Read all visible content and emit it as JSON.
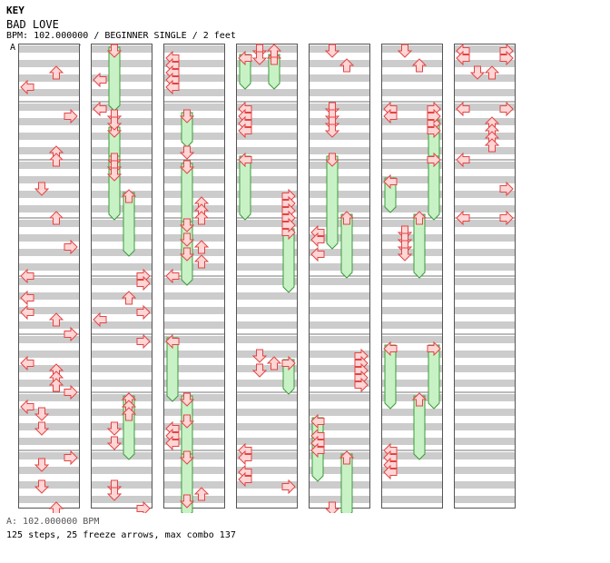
{
  "header": {
    "key_label": "KEY",
    "song_title": "BAD LOVE",
    "info_line": "BPM: 102.000000 / BEGINNER SINGLE / 2 feet",
    "bpm_marker": "A"
  },
  "footer": {
    "bpm_legend": "A: 102.000000 BPM",
    "stats": "125 steps, 25 freeze arrows, max combo 137"
  },
  "colors": {
    "stripe_gray": "#cccccc",
    "column_border": "#555555",
    "arrow_fill": "#ffd5d5",
    "arrow_stroke": "#e14545",
    "freeze_fill": "#c8f2c6",
    "freeze_stroke": "#3d9a3d",
    "bpm_marker_line": "#4a8ed9"
  },
  "chart_data": {
    "type": "step-chart",
    "arrow_directions": [
      "left",
      "down",
      "up",
      "right"
    ],
    "columns": [
      {
        "steps": [
          [
            3,
            "up"
          ],
          [
            5,
            "left"
          ],
          [
            9,
            "right"
          ],
          [
            14,
            "up"
          ],
          [
            15,
            "up"
          ],
          [
            19,
            "down"
          ],
          [
            23,
            "up"
          ],
          [
            27,
            "right"
          ],
          [
            31,
            "left"
          ],
          [
            34,
            "left"
          ],
          [
            36,
            "left"
          ],
          [
            37,
            "up"
          ],
          [
            39,
            "right"
          ],
          [
            43,
            "left"
          ],
          [
            44,
            "up"
          ],
          [
            45,
            "up"
          ],
          [
            46,
            "up"
          ],
          [
            47,
            "right"
          ],
          [
            49,
            "left"
          ],
          [
            50,
            "down"
          ],
          [
            52,
            "down"
          ],
          [
            56,
            "right"
          ],
          [
            57,
            "down"
          ],
          [
            60,
            "down"
          ],
          [
            63,
            "up"
          ]
        ],
        "freezes": []
      },
      {
        "steps": [
          [
            4,
            "left"
          ],
          [
            8,
            "left"
          ],
          [
            9,
            "down"
          ],
          [
            10,
            "down"
          ],
          [
            15,
            "down"
          ],
          [
            16,
            "down"
          ],
          [
            17,
            "down"
          ],
          [
            31,
            "right"
          ],
          [
            32,
            "right"
          ],
          [
            34,
            "up"
          ],
          [
            36,
            "right"
          ],
          [
            37,
            "left"
          ],
          [
            40,
            "right"
          ],
          [
            48,
            "up"
          ],
          [
            49,
            "up"
          ],
          [
            50,
            "up"
          ],
          [
            52,
            "down"
          ],
          [
            54,
            "down"
          ],
          [
            60,
            "down"
          ],
          [
            61,
            "down"
          ],
          [
            63,
            "right"
          ]
        ],
        "freezes": [
          [
            0,
            2,
            "down"
          ],
          [
            11,
            1,
            "down"
          ],
          [
            15,
            2,
            "down"
          ],
          [
            20,
            2,
            "up"
          ],
          [
            48,
            2,
            "up"
          ]
        ]
      },
      {
        "steps": [
          [
            1,
            "left"
          ],
          [
            2,
            "left"
          ],
          [
            3,
            "left"
          ],
          [
            4,
            "left"
          ],
          [
            5,
            "left"
          ],
          [
            14,
            "down"
          ],
          [
            21,
            "up"
          ],
          [
            22,
            "up"
          ],
          [
            23,
            "up"
          ],
          [
            26,
            "down"
          ],
          [
            27,
            "up"
          ],
          [
            28,
            "down"
          ],
          [
            29,
            "up"
          ],
          [
            31,
            "left"
          ],
          [
            51,
            "down"
          ],
          [
            52,
            "left"
          ],
          [
            53,
            "left"
          ],
          [
            54,
            "left"
          ],
          [
            61,
            "up"
          ],
          [
            62,
            "down"
          ]
        ],
        "freezes": [
          [
            9,
            1,
            "down"
          ],
          [
            16,
            2,
            "down"
          ],
          [
            24,
            2,
            "down"
          ],
          [
            40,
            2,
            "left"
          ],
          [
            48,
            2,
            "down"
          ],
          [
            56,
            2,
            "down"
          ]
        ]
      },
      {
        "steps": [
          [
            0,
            "down"
          ],
          [
            0,
            "up"
          ],
          [
            1,
            "down"
          ],
          [
            8,
            "left"
          ],
          [
            9,
            "left"
          ],
          [
            10,
            "left"
          ],
          [
            11,
            "left"
          ],
          [
            20,
            "right"
          ],
          [
            21,
            "right"
          ],
          [
            22,
            "right"
          ],
          [
            23,
            "right"
          ],
          [
            24,
            "right"
          ],
          [
            42,
            "down"
          ],
          [
            43,
            "up"
          ],
          [
            44,
            "down"
          ],
          [
            55,
            "left"
          ],
          [
            56,
            "left"
          ],
          [
            58,
            "left"
          ],
          [
            59,
            "left"
          ],
          [
            60,
            "right"
          ]
        ],
        "freezes": [
          [
            1,
            1,
            "left"
          ],
          [
            1,
            1,
            "up"
          ],
          [
            15,
            2,
            "left"
          ],
          [
            25,
            2,
            "right"
          ],
          [
            43,
            1,
            "right"
          ]
        ]
      },
      {
        "steps": [
          [
            0,
            "down"
          ],
          [
            2,
            "up"
          ],
          [
            8,
            "down"
          ],
          [
            9,
            "down"
          ],
          [
            10,
            "down"
          ],
          [
            11,
            "down"
          ],
          [
            25,
            "left"
          ],
          [
            26,
            "left"
          ],
          [
            28,
            "left"
          ],
          [
            42,
            "right"
          ],
          [
            43,
            "right"
          ],
          [
            44,
            "right"
          ],
          [
            45,
            "right"
          ],
          [
            46,
            "right"
          ],
          [
            53,
            "left"
          ],
          [
            54,
            "left"
          ],
          [
            55,
            "left"
          ],
          [
            63,
            "down"
          ]
        ],
        "freezes": [
          [
            15,
            3,
            "down"
          ],
          [
            23,
            2,
            "up"
          ],
          [
            51,
            2,
            "left"
          ],
          [
            56,
            2,
            "up"
          ]
        ]
      },
      {
        "steps": [
          [
            0,
            "down"
          ],
          [
            2,
            "up"
          ],
          [
            8,
            "left"
          ],
          [
            8,
            "right"
          ],
          [
            9,
            "left"
          ],
          [
            9,
            "right"
          ],
          [
            11,
            "right"
          ],
          [
            25,
            "down"
          ],
          [
            26,
            "down"
          ],
          [
            27,
            "down"
          ],
          [
            28,
            "down"
          ],
          [
            55,
            "left"
          ],
          [
            56,
            "left"
          ],
          [
            57,
            "left"
          ],
          [
            58,
            "left"
          ]
        ],
        "freezes": [
          [
            10,
            2,
            "right"
          ],
          [
            15,
            2,
            "right"
          ],
          [
            18,
            1,
            "left"
          ],
          [
            23,
            2,
            "up"
          ],
          [
            41,
            2,
            "left"
          ],
          [
            41,
            2,
            "right"
          ],
          [
            48,
            2,
            "up"
          ]
        ]
      },
      {
        "steps": [
          [
            0,
            "left"
          ],
          [
            0,
            "right"
          ],
          [
            1,
            "left"
          ],
          [
            1,
            "right"
          ],
          [
            3,
            "down"
          ],
          [
            3,
            "up"
          ],
          [
            8,
            "left"
          ],
          [
            8,
            "right"
          ],
          [
            10,
            "up"
          ],
          [
            11,
            "up"
          ],
          [
            12,
            "up"
          ],
          [
            13,
            "up"
          ],
          [
            15,
            "left"
          ],
          [
            19,
            "right"
          ],
          [
            23,
            "left"
          ],
          [
            23,
            "right"
          ]
        ],
        "freezes": []
      }
    ]
  }
}
